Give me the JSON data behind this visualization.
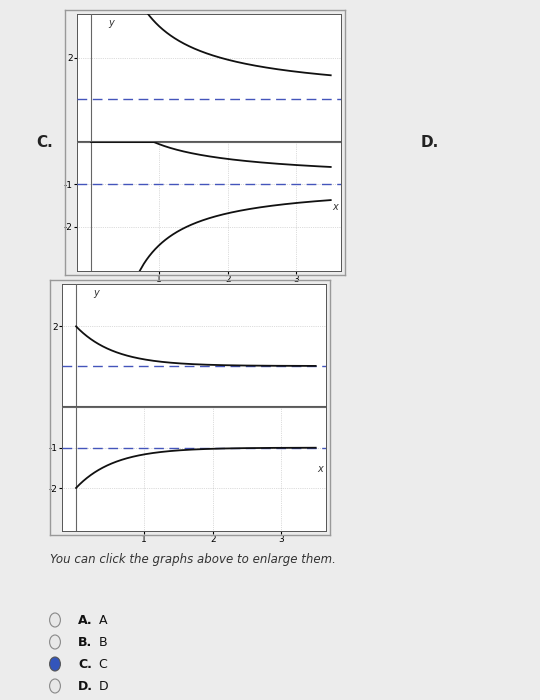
{
  "bg_color": "#ececec",
  "plot_bg": "#ffffff",
  "curve_color": "#111111",
  "asymptote_color": "#4455bb",
  "grid_color": "#aaaaaa",
  "label_color": "#333333",
  "caption": "You can click the graphs above to enlarge them.",
  "choices": [
    "A.",
    "B.",
    "C.",
    "D."
  ],
  "choice_labels": [
    "A",
    "B",
    "C",
    "D"
  ],
  "selected": 2,
  "C_label": "C.",
  "D_label": "D."
}
